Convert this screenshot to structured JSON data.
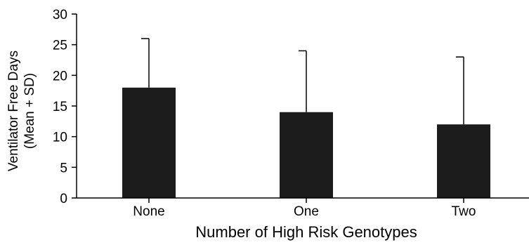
{
  "chart_data": {
    "type": "bar",
    "title": "",
    "xlabel": "Number of High Risk Genotypes",
    "ylabel_lines": [
      "Ventilator Free Days",
      "(Mean + SD)"
    ],
    "categories": [
      "None",
      "One",
      "Two"
    ],
    "values": [
      18,
      14,
      12
    ],
    "error_upper": [
      26,
      24,
      23
    ],
    "ylim": [
      0,
      30
    ],
    "yticks": [
      0,
      5,
      10,
      15,
      20,
      25,
      30
    ],
    "grid": false,
    "legend": "none",
    "bar_color": "#1c1c1c",
    "axis_color": "#000000"
  }
}
